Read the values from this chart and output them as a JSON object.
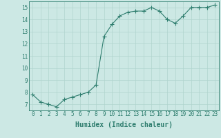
{
  "x": [
    0,
    1,
    2,
    3,
    4,
    5,
    6,
    7,
    8,
    9,
    10,
    11,
    12,
    13,
    14,
    15,
    16,
    17,
    18,
    19,
    20,
    21,
    22,
    23
  ],
  "y": [
    7.8,
    7.2,
    7.0,
    6.8,
    7.4,
    7.6,
    7.8,
    8.0,
    8.6,
    12.6,
    13.6,
    14.3,
    14.6,
    14.7,
    14.7,
    15.0,
    14.7,
    14.0,
    13.7,
    14.3,
    15.0,
    15.0,
    15.0,
    15.2
  ],
  "xlabel": "Humidex (Indice chaleur)",
  "bg_color": "#cce8e4",
  "line_color": "#2e7d6e",
  "grid_color": "#b0d4ce",
  "ylim": [
    6.5,
    15.5
  ],
  "xlim": [
    -0.5,
    23.5
  ],
  "yticks": [
    7,
    8,
    9,
    10,
    11,
    12,
    13,
    14,
    15
  ],
  "xticks": [
    0,
    1,
    2,
    3,
    4,
    5,
    6,
    7,
    8,
    9,
    10,
    11,
    12,
    13,
    14,
    15,
    16,
    17,
    18,
    19,
    20,
    21,
    22,
    23
  ],
  "tick_fontsize": 5.5,
  "xlabel_fontsize": 7.0,
  "marker": "+",
  "marker_size": 4.0,
  "linewidth": 0.8
}
